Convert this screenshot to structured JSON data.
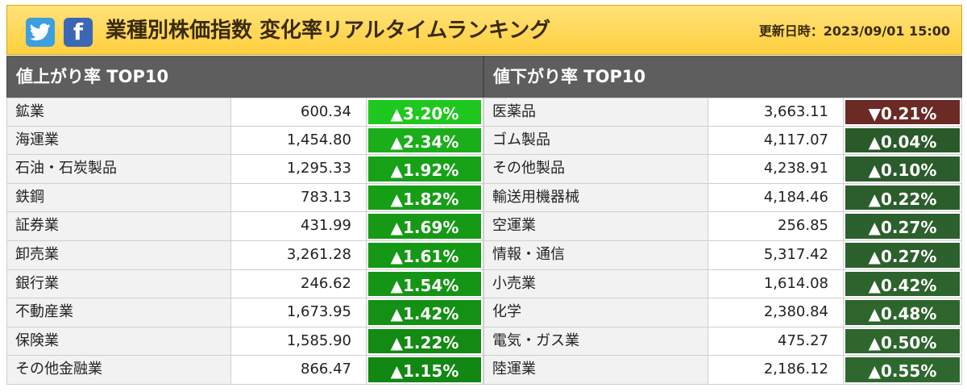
{
  "header": {
    "title": "業種別株価指数 変化率リアルタイムランキング",
    "updated": "更新日時：2023/09/01 15:00",
    "twitter_icon": "twitter-bird-icon",
    "facebook_icon": "facebook-f-icon",
    "twitter_color": "#3d9fe0",
    "facebook_color": "#3b67b5"
  },
  "gainers": {
    "heading": "値上がり率 TOP10",
    "rows": [
      {
        "name": "鉱業",
        "value": "600.34",
        "change": "▲3.20%",
        "color": "#1ec81e"
      },
      {
        "name": "海運業",
        "value": "1,454.80",
        "change": "▲2.34%",
        "color": "#1aae1a"
      },
      {
        "name": "石油・石炭製品",
        "value": "1,295.33",
        "change": "▲1.92%",
        "color": "#17a117"
      },
      {
        "name": "鉄鋼",
        "value": "783.13",
        "change": "▲1.82%",
        "color": "#169e16"
      },
      {
        "name": "証券業",
        "value": "431.99",
        "change": "▲1.69%",
        "color": "#169a16"
      },
      {
        "name": "卸売業",
        "value": "3,261.28",
        "change": "▲1.61%",
        "color": "#159815"
      },
      {
        "name": "銀行業",
        "value": "246.62",
        "change": "▲1.54%",
        "color": "#159515"
      },
      {
        "name": "不動産業",
        "value": "1,673.95",
        "change": "▲1.42%",
        "color": "#149014"
      },
      {
        "name": "保険業",
        "value": "1,585.90",
        "change": "▲1.22%",
        "color": "#138a13"
      },
      {
        "name": "その他金融業",
        "value": "866.47",
        "change": "▲1.15%",
        "color": "#138713"
      }
    ]
  },
  "losers": {
    "heading": "値下がり率 TOP10",
    "rows": [
      {
        "name": "医薬品",
        "value": "3,663.11",
        "change": "▼0.21%",
        "color": "#6b2a25"
      },
      {
        "name": "ゴム製品",
        "value": "4,117.07",
        "change": "▲0.04%",
        "color": "#2a5a2a"
      },
      {
        "name": "その他製品",
        "value": "4,238.91",
        "change": "▲0.10%",
        "color": "#2b5c2b"
      },
      {
        "name": "輸送用機器械",
        "value": "4,184.46",
        "change": "▲0.22%",
        "color": "#2c5e2c"
      },
      {
        "name": "空運業",
        "value": "256.85",
        "change": "▲0.27%",
        "color": "#2c602c"
      },
      {
        "name": "情報・通信",
        "value": "5,317.42",
        "change": "▲0.27%",
        "color": "#2c602c"
      },
      {
        "name": "小売業",
        "value": "1,614.08",
        "change": "▲0.42%",
        "color": "#2d632d"
      },
      {
        "name": "化学",
        "value": "2,380.84",
        "change": "▲0.48%",
        "color": "#2d652d"
      },
      {
        "name": "電気・ガス業",
        "value": "475.27",
        "change": "▲0.50%",
        "color": "#2e662e"
      },
      {
        "name": "陸運業",
        "value": "2,186.12",
        "change": "▲0.55%",
        "color": "#2e682e"
      }
    ]
  }
}
